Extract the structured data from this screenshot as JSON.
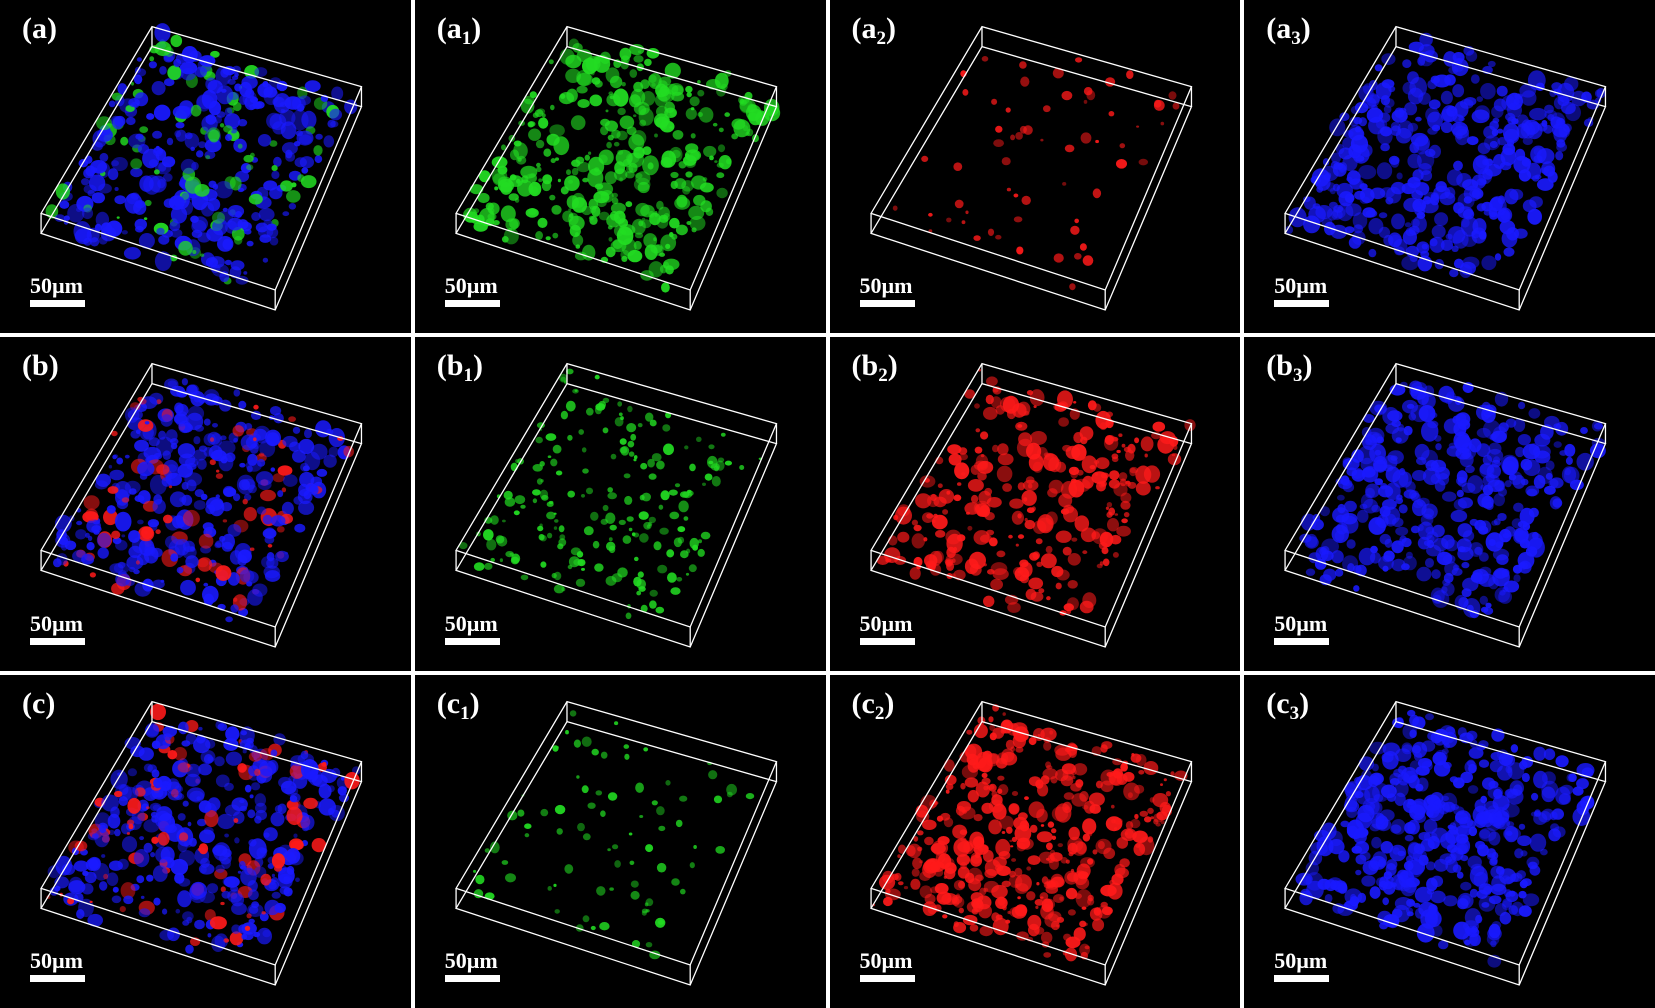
{
  "figure": {
    "scale_bar_text": "50µm",
    "panels": [
      {
        "id": "a",
        "base": "a",
        "sub": "",
        "channels": [
          "blue",
          "green"
        ],
        "density": 0.9
      },
      {
        "id": "a1",
        "base": "a",
        "sub": "1",
        "channels": [
          "green"
        ],
        "density": 0.9
      },
      {
        "id": "a2",
        "base": "a",
        "sub": "2",
        "channels": [
          "red"
        ],
        "density": 0.15
      },
      {
        "id": "a3",
        "base": "a",
        "sub": "3",
        "channels": [
          "blue"
        ],
        "density": 0.9
      },
      {
        "id": "b",
        "base": "b",
        "sub": "",
        "channels": [
          "blue",
          "red"
        ],
        "density": 0.9
      },
      {
        "id": "b1",
        "base": "b",
        "sub": "1",
        "channels": [
          "green"
        ],
        "density": 0.5
      },
      {
        "id": "b2",
        "base": "b",
        "sub": "2",
        "channels": [
          "red"
        ],
        "density": 0.7
      },
      {
        "id": "b3",
        "base": "b",
        "sub": "3",
        "channels": [
          "blue"
        ],
        "density": 0.9
      },
      {
        "id": "c",
        "base": "c",
        "sub": "",
        "channels": [
          "blue",
          "red"
        ],
        "density": 1.0
      },
      {
        "id": "c1",
        "base": "c",
        "sub": "1",
        "channels": [
          "green"
        ],
        "density": 0.2
      },
      {
        "id": "c2",
        "base": "c",
        "sub": "2",
        "channels": [
          "red"
        ],
        "density": 1.0
      },
      {
        "id": "c3",
        "base": "c",
        "sub": "3",
        "channels": [
          "blue"
        ],
        "density": 1.0
      }
    ]
  },
  "colors": {
    "background": "#000000",
    "frame": "#ffffff",
    "blue": "#1a1aff",
    "green": "#22dd22",
    "red": "#ff1a1a",
    "divider": "#ffffff"
  }
}
